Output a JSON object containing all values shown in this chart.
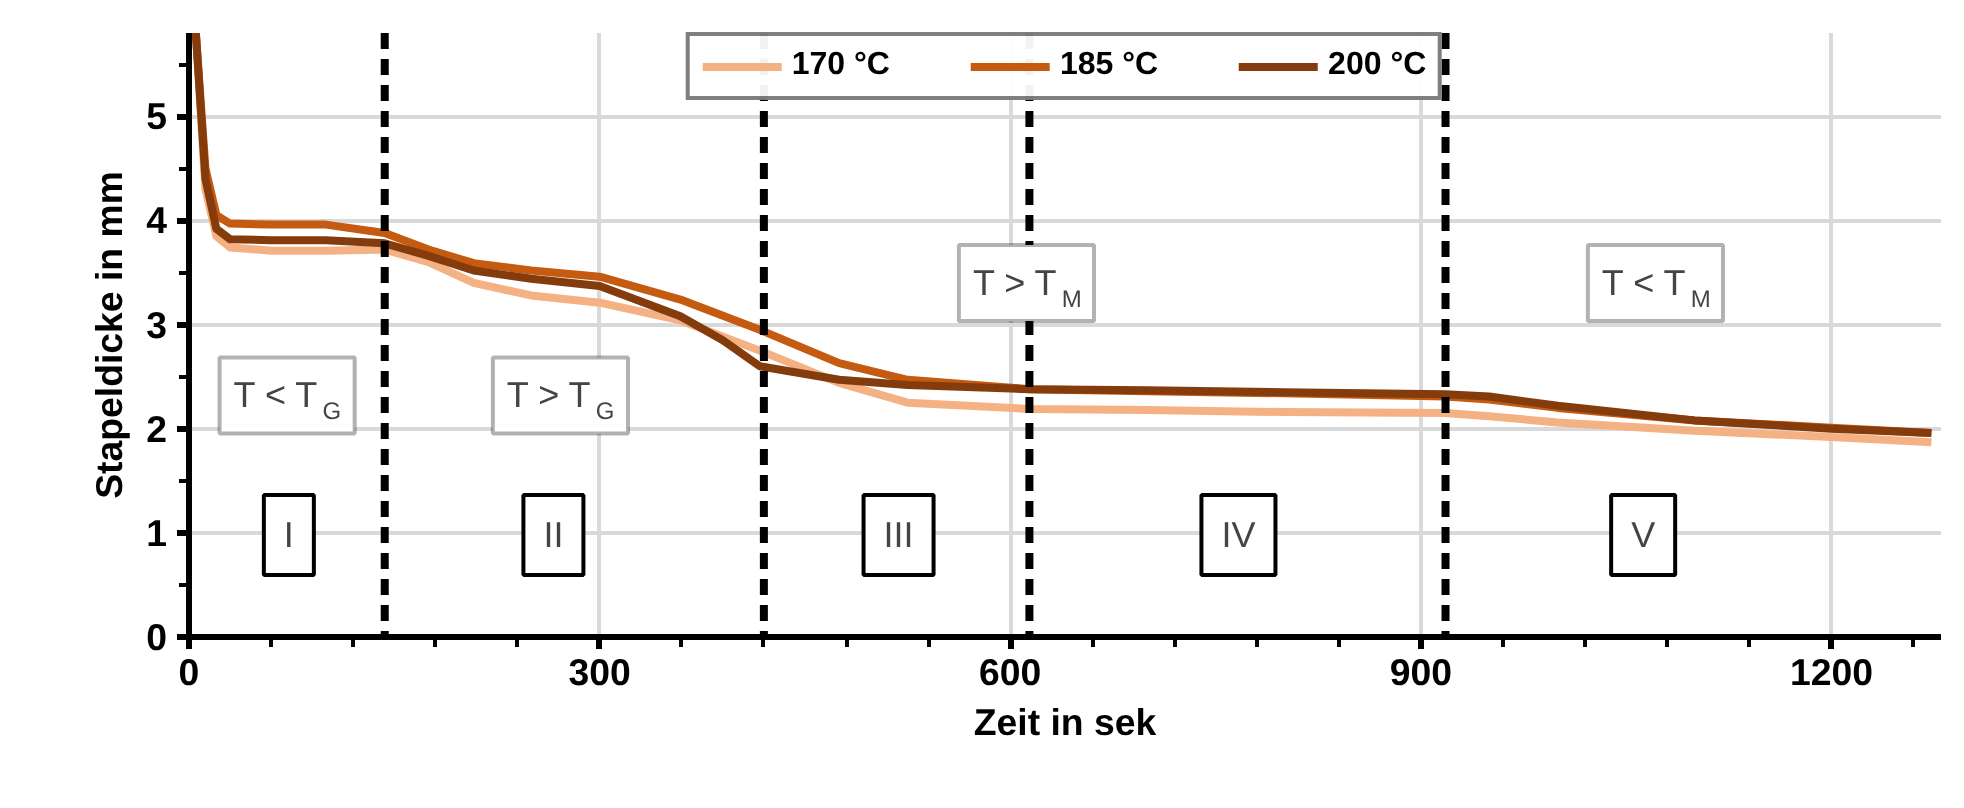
{
  "chart_data": {
    "type": "line",
    "xlabel": "Zeit in sek",
    "ylabel": "Stapeldicke in mm",
    "xlim": [
      0,
      1280
    ],
    "ylim": [
      0,
      5.8
    ],
    "xticks": [
      0,
      300,
      600,
      900,
      1200
    ],
    "yticks": [
      0,
      1,
      2,
      3,
      4,
      5
    ],
    "grid": true,
    "legend": "top",
    "line_style": "solid",
    "marker": "none",
    "series": [
      {
        "name": "170 °C",
        "color": "#f4b183",
        "x": [
          5,
          12,
          20,
          30,
          60,
          100,
          143,
          175,
          208,
          250,
          300,
          359,
          417,
          475,
          525,
          614,
          700,
          800,
          918,
          950,
          1000,
          1100,
          1200,
          1273
        ],
        "values": [
          5.8,
          4.3,
          3.85,
          3.74,
          3.71,
          3.71,
          3.72,
          3.6,
          3.4,
          3.28,
          3.21,
          3.04,
          2.75,
          2.44,
          2.25,
          2.19,
          2.18,
          2.16,
          2.15,
          2.12,
          2.06,
          1.98,
          1.92,
          1.87
        ]
      },
      {
        "name": "185 °C",
        "color": "#c55a11",
        "x": [
          5,
          12,
          20,
          30,
          60,
          100,
          143,
          175,
          208,
          250,
          300,
          359,
          417,
          475,
          525,
          614,
          700,
          800,
          918,
          950,
          1000,
          1100,
          1200,
          1273
        ],
        "values": [
          5.8,
          4.5,
          4.05,
          3.97,
          3.96,
          3.96,
          3.88,
          3.72,
          3.59,
          3.52,
          3.46,
          3.24,
          2.95,
          2.63,
          2.47,
          2.38,
          2.36,
          2.34,
          2.31,
          2.28,
          2.2,
          2.08,
          2.01,
          1.96
        ]
      },
      {
        "name": "200 °C",
        "color": "#843c0c",
        "x": [
          5,
          12,
          20,
          30,
          60,
          100,
          143,
          175,
          208,
          250,
          300,
          359,
          390,
          417,
          475,
          525,
          614,
          700,
          800,
          918,
          950,
          1000,
          1100,
          1200,
          1273
        ],
        "values": [
          5.8,
          4.4,
          3.92,
          3.82,
          3.81,
          3.81,
          3.78,
          3.66,
          3.52,
          3.44,
          3.37,
          3.08,
          2.85,
          2.6,
          2.47,
          2.42,
          2.38,
          2.37,
          2.35,
          2.33,
          2.31,
          2.22,
          2.08,
          2.0,
          1.96
        ]
      }
    ],
    "ref_lines": [
      {
        "axis": "x",
        "value": 143,
        "color": "#000000",
        "line_style": "dashed"
      },
      {
        "axis": "x",
        "value": 420,
        "color": "#000000",
        "line_style": "dashed"
      },
      {
        "axis": "x",
        "value": 614,
        "color": "#000000",
        "line_style": "dashed"
      },
      {
        "axis": "x",
        "value": 918,
        "color": "#000000",
        "line_style": "dashed"
      }
    ],
    "annotations": [
      "T < T$_{G}$",
      "T > T$_{G}$",
      "T > T$_{M}$",
      "T < T$_{M}$",
      "I",
      "II",
      "III",
      "IV",
      "V"
    ]
  }
}
